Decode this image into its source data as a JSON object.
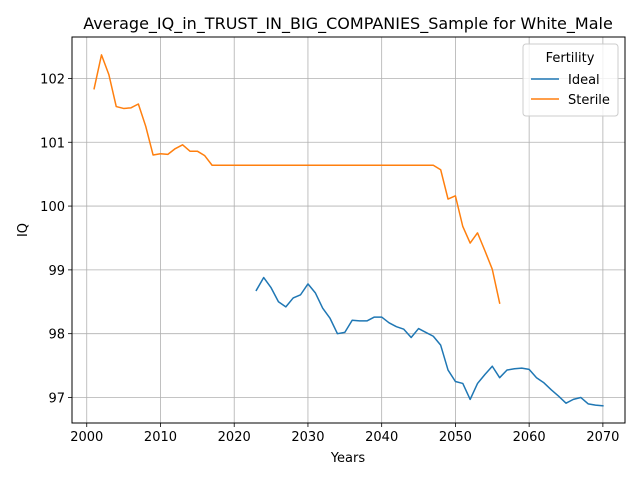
{
  "chart_data": {
    "type": "line",
    "title": "Average_IQ_in_TRUST_IN_BIG_COMPANIES_Sample for White_Male",
    "xlabel": "Years",
    "ylabel": "IQ",
    "xlim": [
      1998,
      2073
    ],
    "ylim": [
      96.6,
      102.65
    ],
    "xticks": [
      2000,
      2010,
      2020,
      2030,
      2040,
      2050,
      2060,
      2070
    ],
    "yticks": [
      97,
      98,
      99,
      100,
      101,
      102
    ],
    "grid": true,
    "legend": {
      "title": "Fertility",
      "placement": "top-right"
    },
    "series": [
      {
        "name": "Ideal",
        "color": "#1f77b4",
        "x": [
          2023,
          2024,
          2025,
          2026,
          2027,
          2028,
          2029,
          2030,
          2031,
          2032,
          2033,
          2034,
          2035,
          2036,
          2037,
          2038,
          2039,
          2040,
          2041,
          2042,
          2043,
          2044,
          2045,
          2046,
          2047,
          2048,
          2049,
          2050,
          2051,
          2052,
          2053,
          2054,
          2055,
          2056,
          2057,
          2058,
          2059,
          2060,
          2061,
          2062,
          2063,
          2064,
          2065,
          2066,
          2067,
          2068,
          2069,
          2070
        ],
        "y": [
          98.68,
          98.88,
          98.72,
          98.5,
          98.42,
          98.56,
          98.61,
          98.78,
          98.64,
          98.4,
          98.24,
          98.0,
          98.02,
          98.21,
          98.2,
          98.2,
          98.26,
          98.26,
          98.17,
          98.11,
          98.07,
          97.94,
          98.08,
          98.02,
          97.96,
          97.82,
          97.43,
          97.25,
          97.22,
          96.97,
          97.22,
          97.36,
          97.49,
          97.31,
          97.43,
          97.45,
          97.46,
          97.44,
          97.31,
          97.23,
          97.12,
          97.02,
          96.91,
          96.97,
          97.0,
          96.9,
          96.88,
          96.87
        ]
      },
      {
        "name": "Sterile",
        "color": "#ff7f0e",
        "x": [
          2001,
          2002,
          2003,
          2004,
          2005,
          2006,
          2007,
          2008,
          2009,
          2010,
          2011,
          2012,
          2013,
          2014,
          2015,
          2016,
          2017,
          2018,
          2019,
          2020,
          2021,
          2022,
          2023,
          2024,
          2025,
          2026,
          2027,
          2028,
          2029,
          2030,
          2031,
          2032,
          2033,
          2034,
          2035,
          2036,
          2037,
          2038,
          2039,
          2040,
          2041,
          2042,
          2043,
          2044,
          2045,
          2046,
          2047,
          2048,
          2049,
          2050,
          2051,
          2052,
          2053,
          2054,
          2055,
          2056
        ],
        "y": [
          101.84,
          102.37,
          102.06,
          101.56,
          101.53,
          101.54,
          101.6,
          101.25,
          100.8,
          100.82,
          100.81,
          100.9,
          100.96,
          100.86,
          100.86,
          100.79,
          100.64,
          100.64,
          100.64,
          100.64,
          100.64,
          100.64,
          100.64,
          100.64,
          100.64,
          100.64,
          100.64,
          100.64,
          100.64,
          100.64,
          100.64,
          100.64,
          100.64,
          100.64,
          100.64,
          100.64,
          100.64,
          100.64,
          100.64,
          100.64,
          100.64,
          100.64,
          100.64,
          100.64,
          100.64,
          100.64,
          100.64,
          100.57,
          100.11,
          100.16,
          99.68,
          99.42,
          99.58,
          99.3,
          99.01,
          98.48
        ]
      }
    ]
  }
}
